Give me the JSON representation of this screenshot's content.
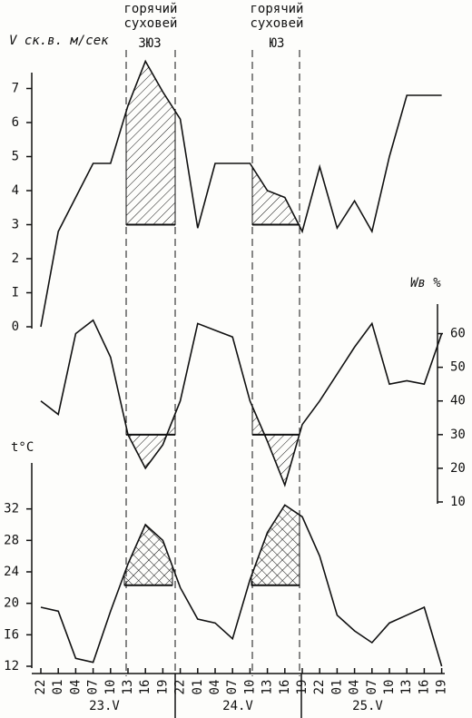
{
  "chart_data": [
    {
      "type": "line",
      "ylabel": "V ск.в. м/сек",
      "color": "#111111",
      "values": [
        0,
        2.8,
        3.8,
        4.8,
        4.8,
        6.5,
        7.8,
        6.9,
        6.1,
        2.9,
        4.8,
        4.8,
        4.8,
        4.0,
        3.8,
        2.8,
        4.7,
        2.9,
        3.7,
        2.8,
        5.0,
        6.8,
        6.8,
        6.8
      ],
      "ylim": [
        0,
        8
      ],
      "yticks": [
        0,
        {
          "value": 1,
          "label": "I"
        },
        2,
        3,
        4,
        5,
        6,
        7
      ],
      "annotations": [
        {
          "lines": [
            "горячий",
            "суховей"
          ],
          "wind": "ЗЮЗ"
        },
        {
          "lines": [
            "горячий",
            "суховей"
          ],
          "wind": "ЮЗ"
        }
      ]
    },
    {
      "type": "line",
      "ylabel": "Wв %",
      "color": "#111111",
      "values": [
        40,
        36,
        60,
        64,
        53,
        30,
        20,
        27,
        40,
        63,
        61,
        59,
        40,
        28,
        15,
        33,
        40,
        48,
        56,
        63,
        45,
        46,
        45,
        60
      ],
      "ylim": [
        10,
        65
      ],
      "yticks": [
        10,
        20,
        30,
        40,
        50,
        60
      ]
    },
    {
      "type": "line",
      "ylabel": "t°C",
      "color": "#111111",
      "categories": [
        "22",
        "01",
        "04",
        "07",
        "10",
        "13",
        "16",
        "19",
        "22",
        "01",
        "04",
        "07",
        "10",
        "13",
        "16",
        "19",
        "22",
        "01",
        "04",
        "07",
        "10",
        "13",
        "16",
        "19"
      ],
      "values": [
        19.5,
        19,
        13,
        12.5,
        19,
        25,
        30,
        28,
        22,
        18,
        17.5,
        15.5,
        23,
        29,
        32.5,
        31,
        26,
        18.5,
        16.5,
        15,
        17.5,
        18.5,
        19.5,
        12
      ],
      "ylim": [
        12,
        36
      ],
      "yticks": [
        12,
        {
          "value": 16,
          "label": "I6"
        },
        20,
        24,
        28,
        32
      ],
      "day_labels": [
        "23.V",
        "24.V",
        "25.V"
      ]
    }
  ]
}
